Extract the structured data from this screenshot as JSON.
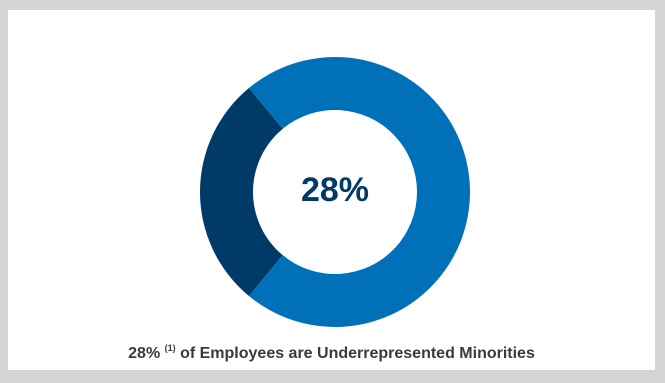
{
  "chart_data": {
    "type": "pie",
    "variant": "donut",
    "title": "",
    "center_label": "28%",
    "slices": [
      {
        "label": "Underrepresented Minorities",
        "value": 28,
        "color": "#003a66"
      },
      {
        "label": "",
        "value": 72,
        "color": "#0071b8"
      }
    ],
    "caption": {
      "prefix": "28%",
      "footnote": "(1)",
      "suffix": " of Employees are Underrepresented Minorities"
    }
  },
  "colors": {
    "background": "#d4d4d4",
    "card": "#ffffff",
    "accent_dark": "#003a66",
    "accent": "#0071b8",
    "text_dark": "#003a66",
    "caption_text": "#3a3a3a"
  }
}
